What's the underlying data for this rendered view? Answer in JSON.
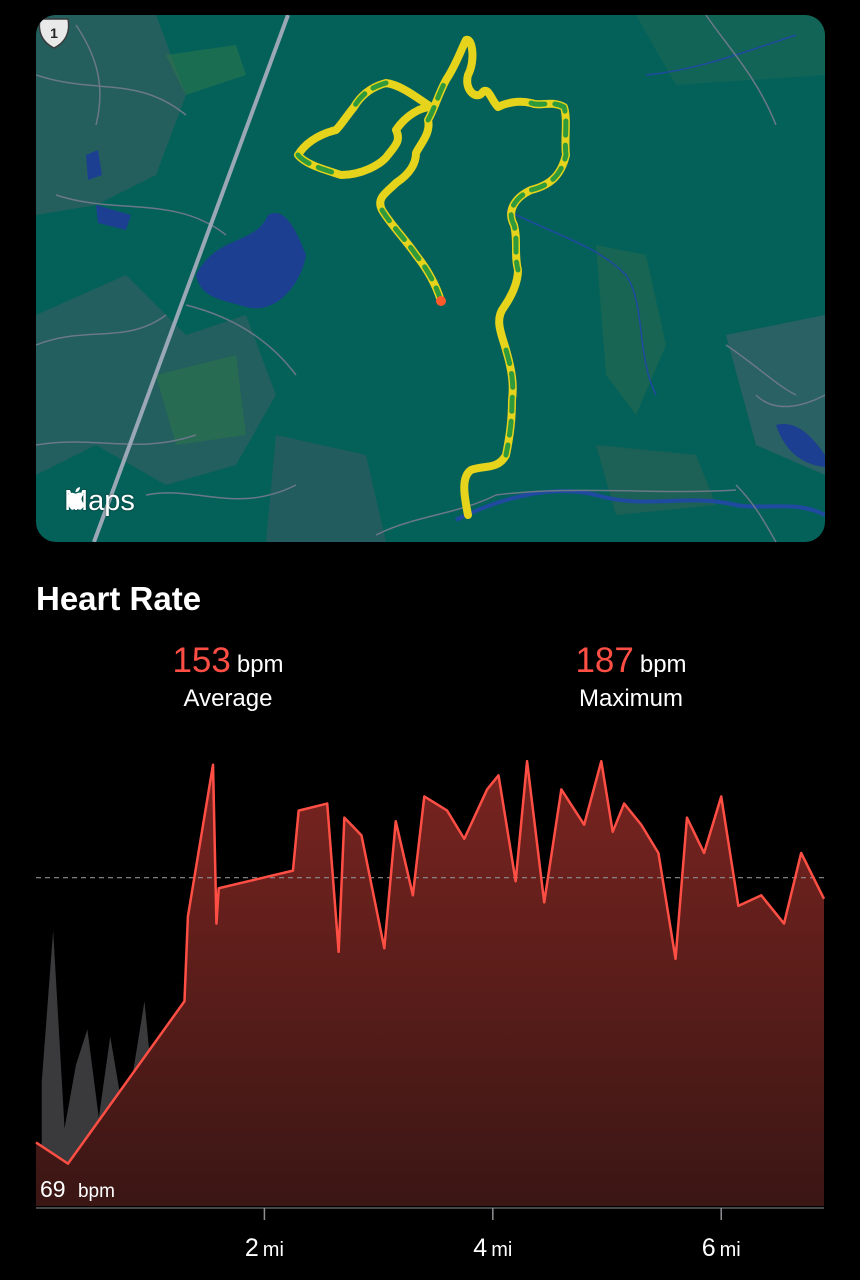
{
  "map": {
    "attribution_logo": "apple-logo-icon",
    "attribution": "Maps",
    "route_shield": "1",
    "colors": {
      "land": "#04615a",
      "water": "#1c3f92",
      "road": "#6a7887",
      "highway": "#9aa7b5",
      "route_yellow": "#e6d31b",
      "route_green": "#2f9a3c",
      "start_dot": "#ff5a2a"
    }
  },
  "heart_rate": {
    "title": "Heart Rate",
    "average": {
      "value": "153",
      "unit": "bpm",
      "label": "Average"
    },
    "maximum": {
      "value": "187",
      "unit": "bpm",
      "label": "Maximum"
    },
    "min_label": {
      "value": "69",
      "unit": "bpm"
    }
  },
  "chart_data": {
    "type": "area",
    "x_unit": "mi",
    "x_ticks": [
      {
        "value": 2,
        "number": "2",
        "unit": "mi"
      },
      {
        "value": 4,
        "number": "4",
        "unit": "mi"
      },
      {
        "value": 6,
        "number": "6",
        "unit": "mi"
      }
    ],
    "xlim": [
      0,
      6.9
    ],
    "ylim": [
      60,
      192
    ],
    "reference_line": 153,
    "grid": false,
    "legend": "none",
    "colors": {
      "line": "#ff4f45",
      "fill_top": "#7a2420",
      "fill_bottom": "#3a1614",
      "gray": "#3a3a3c"
    },
    "x": [
      0,
      0.28,
      1.3,
      1.33,
      1.55,
      1.58,
      1.6,
      2.25,
      2.3,
      2.55,
      2.65,
      2.7,
      2.85,
      3.05,
      3.15,
      3.3,
      3.4,
      3.6,
      3.75,
      3.95,
      4.05,
      4.2,
      4.3,
      4.45,
      4.6,
      4.8,
      4.95,
      5.05,
      5.15,
      5.3,
      5.45,
      5.6,
      5.7,
      5.85,
      6.0,
      6.15,
      6.35,
      6.55,
      6.7,
      6.9
    ],
    "y": [
      78,
      72,
      118,
      142,
      185,
      140,
      150,
      155,
      172,
      174,
      132,
      170,
      165,
      133,
      169,
      148,
      176,
      172,
      164,
      178,
      182,
      152,
      186,
      146,
      178,
      168,
      186,
      166,
      174,
      168,
      160,
      130,
      170,
      160,
      176,
      145,
      148,
      140,
      160,
      147
    ],
    "gray_overlay": {
      "x": [
        0.05,
        0.15,
        0.25,
        0.35,
        0.45,
        0.55,
        0.65,
        0.75,
        0.85,
        0.95,
        1.05,
        1.1
      ],
      "y": [
        95,
        138,
        82,
        100,
        110,
        85,
        108,
        89,
        98,
        118,
        84,
        100
      ]
    }
  }
}
